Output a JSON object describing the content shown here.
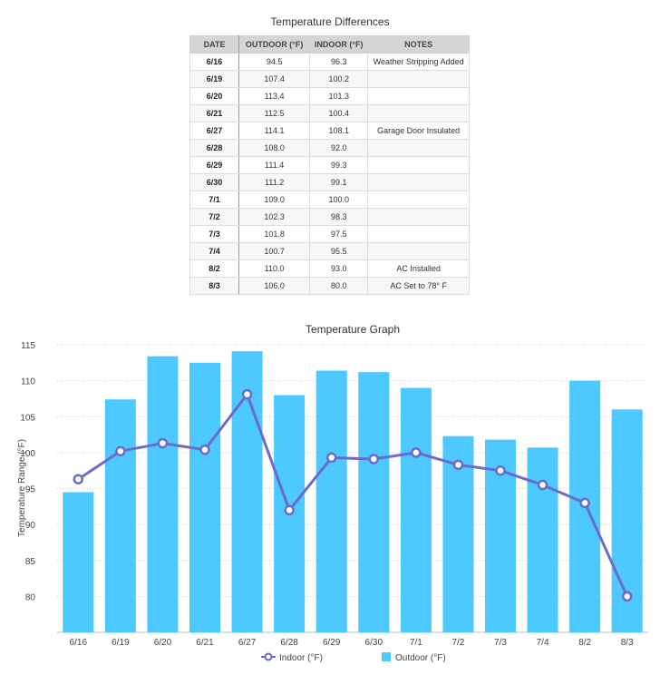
{
  "table": {
    "title": "Temperature Differences",
    "headers": {
      "date": "DATE",
      "outdoor": "OUTDOOR (°F)",
      "indoor": "INDOOR (°F)",
      "notes": "NOTES"
    },
    "rows": [
      {
        "date": "6/16",
        "outdoor": "94.5",
        "indoor": "96.3",
        "notes": "Weather Stripping Added"
      },
      {
        "date": "6/19",
        "outdoor": "107.4",
        "indoor": "100.2",
        "notes": ""
      },
      {
        "date": "6/20",
        "outdoor": "113.4",
        "indoor": "101.3",
        "notes": ""
      },
      {
        "date": "6/21",
        "outdoor": "112.5",
        "indoor": "100.4",
        "notes": ""
      },
      {
        "date": "6/27",
        "outdoor": "114.1",
        "indoor": "108.1",
        "notes": "Garage Door Insulated"
      },
      {
        "date": "6/28",
        "outdoor": "108.0",
        "indoor": "92.0",
        "notes": ""
      },
      {
        "date": "6/29",
        "outdoor": "111.4",
        "indoor": "99.3",
        "notes": ""
      },
      {
        "date": "6/30",
        "outdoor": "111.2",
        "indoor": "99.1",
        "notes": ""
      },
      {
        "date": "7/1",
        "outdoor": "109.0",
        "indoor": "100.0",
        "notes": ""
      },
      {
        "date": "7/2",
        "outdoor": "102.3",
        "indoor": "98.3",
        "notes": ""
      },
      {
        "date": "7/3",
        "outdoor": "101.8",
        "indoor": "97.5",
        "notes": ""
      },
      {
        "date": "7/4",
        "outdoor": "100.7",
        "indoor": "95.5",
        "notes": ""
      },
      {
        "date": "8/2",
        "outdoor": "110.0",
        "indoor": "93.0",
        "notes": "AC Installed"
      },
      {
        "date": "8/3",
        "outdoor": "106.0",
        "indoor": "80.0",
        "notes": "AC Set to 78° F"
      }
    ]
  },
  "chart_data": {
    "type": "bar",
    "title": "Temperature Graph",
    "xlabel": "",
    "ylabel": "Temperature Range (°F)",
    "ylim": [
      75,
      115
    ],
    "yticks": [
      80,
      85,
      90,
      95,
      100,
      105,
      110,
      115
    ],
    "grid": true,
    "legend": "bottom",
    "categories": [
      "6/16",
      "6/19",
      "6/20",
      "6/21",
      "6/27",
      "6/28",
      "6/29",
      "6/30",
      "7/1",
      "7/2",
      "7/3",
      "7/4",
      "8/2",
      "8/3"
    ],
    "series": [
      {
        "name": "Indoor (°F)",
        "type": "line",
        "color": "#6b6bc9",
        "values": [
          96.3,
          100.2,
          101.3,
          100.4,
          108.1,
          92.0,
          99.3,
          99.1,
          100.0,
          98.3,
          97.5,
          95.5,
          93.0,
          80.0
        ]
      },
      {
        "name": "Outdoor (°F)",
        "type": "bar",
        "color": "#4dc9ff",
        "values": [
          94.5,
          107.4,
          113.4,
          112.5,
          114.1,
          108.0,
          111.4,
          111.2,
          109.0,
          102.3,
          101.8,
          100.7,
          110.0,
          106.0
        ]
      }
    ]
  }
}
